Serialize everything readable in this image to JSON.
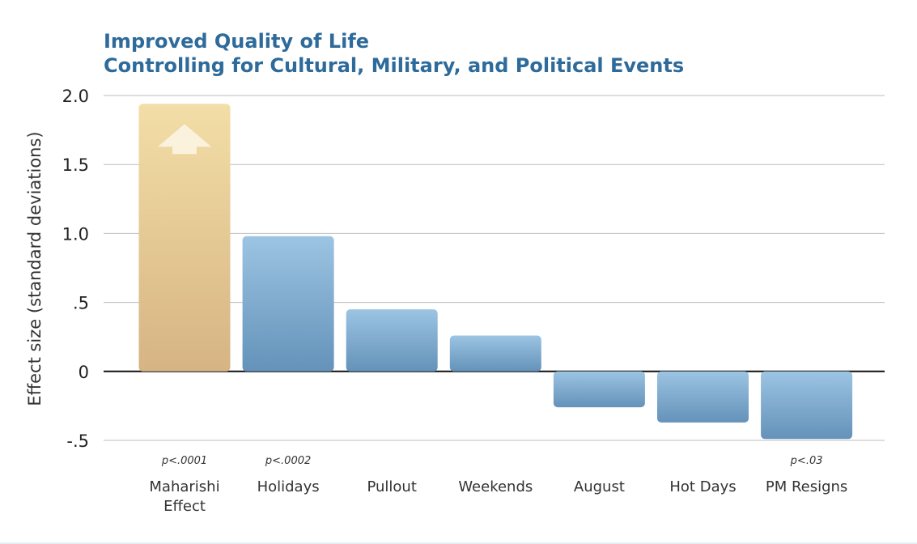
{
  "chart_data": {
    "type": "bar",
    "title_lines": [
      "Improved Quality of Life",
      "Controlling for Cultural, Military, and Political Events"
    ],
    "ylabel": "Effect size (standard deviations)",
    "ylim": [
      -0.5,
      2.0
    ],
    "yticks": [
      {
        "value": 2.0,
        "label": "2.0"
      },
      {
        "value": 1.5,
        "label": "1.5"
      },
      {
        "value": 1.0,
        "label": "1.0"
      },
      {
        "value": 0.5,
        "label": ".5"
      },
      {
        "value": 0,
        "label": "0"
      },
      {
        "value": -0.5,
        "label": "-.5"
      }
    ],
    "grid": true,
    "categories": [
      {
        "label": [
          "Maharishi",
          "Effect"
        ],
        "value": 1.94,
        "p": "p<.0001",
        "highlight": true,
        "arrow": true
      },
      {
        "label": [
          "Holidays"
        ],
        "value": 0.98,
        "p": "p<.0002"
      },
      {
        "label": [
          "Pullout"
        ],
        "value": 0.45,
        "p": ""
      },
      {
        "label": [
          "Weekends"
        ],
        "value": 0.26,
        "p": ""
      },
      {
        "label": [
          "August"
        ],
        "value": -0.26,
        "p": ""
      },
      {
        "label": [
          "Hot Days"
        ],
        "value": -0.37,
        "p": ""
      },
      {
        "label": [
          "PM Resigns"
        ],
        "value": -0.49,
        "p": "p<.03"
      }
    ],
    "colors": {
      "highlight_top": "#f3dea7",
      "highlight_bottom": "#d6b483",
      "bar_top": "#9cc4e3",
      "bar_bottom": "#6492b9",
      "arrow": "#fbf2dd",
      "grid": "#bdbdbd",
      "axis": "#111111",
      "title": "#2e6b9a"
    }
  }
}
